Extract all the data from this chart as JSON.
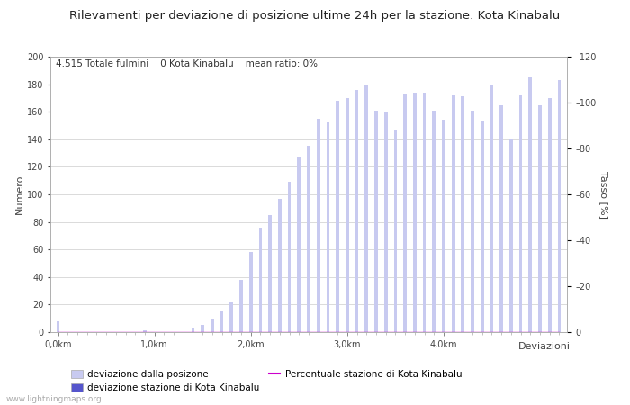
{
  "title": "Rilevamenti per deviazione di posizione ultime 24h per la stazione: Kota Kinabalu",
  "subtitle": "4.515 Totale fulmini    0 Kota Kinabalu    mean ratio: 0%",
  "xlabel": "Deviazioni",
  "ylabel_left": "Numero",
  "ylabel_right": "Tasso [%]",
  "ylim_left": [
    0,
    200
  ],
  "ylim_right": [
    0,
    120
  ],
  "yticks_left": [
    0,
    20,
    40,
    60,
    80,
    100,
    120,
    140,
    160,
    180,
    200
  ],
  "yticks_right": [
    0,
    20,
    40,
    60,
    80,
    100,
    120
  ],
  "bar_values": [
    8,
    0,
    0,
    0,
    0,
    0,
    0,
    0,
    0,
    1,
    0,
    0,
    0,
    0,
    3,
    5,
    10,
    16,
    22,
    38,
    58,
    76,
    85,
    97,
    109,
    127,
    135,
    155,
    152,
    168,
    170,
    176,
    180,
    161,
    160,
    147,
    173,
    174,
    174,
    161,
    154,
    172,
    171,
    161,
    153,
    180,
    165,
    140,
    172,
    185,
    165,
    170,
    183
  ],
  "station_values": [
    0,
    0,
    0,
    0,
    0,
    0,
    0,
    0,
    0,
    0,
    0,
    0,
    0,
    0,
    0,
    0,
    0,
    0,
    0,
    0,
    0,
    0,
    0,
    0,
    0,
    0,
    0,
    0,
    0,
    0,
    0,
    0,
    0,
    0,
    0,
    0,
    0,
    0,
    0,
    0,
    0,
    0,
    0,
    0,
    0,
    0,
    0,
    0,
    0,
    0,
    0,
    0,
    0
  ],
  "percentage_values": [
    0,
    0,
    0,
    0,
    0,
    0,
    0,
    0,
    0,
    0,
    0,
    0,
    0,
    0,
    0,
    0,
    0,
    0,
    0,
    0,
    0,
    0,
    0,
    0,
    0,
    0,
    0,
    0,
    0,
    0,
    0,
    0,
    0,
    0,
    0,
    0,
    0,
    0,
    0,
    0,
    0,
    0,
    0,
    0,
    0,
    0,
    0,
    0,
    0,
    0,
    0,
    0,
    0
  ],
  "bar_color_light": "#c8caf0",
  "bar_color_dark": "#5555cc",
  "line_color": "#cc00cc",
  "grid_color": "#cccccc",
  "background_color": "#ffffff",
  "watermark": "www.lightningmaps.org",
  "legend_label_light": "deviazione dalla posizone",
  "legend_label_dark": "deviazione stazione di Kota Kinabalu",
  "legend_label_line": "Percentuale stazione di Kota Kinabalu",
  "n_bars": 53,
  "step_km": 0.1,
  "right_ytick_labels": [
    "0",
    "-20",
    "-40",
    "-60",
    "-80",
    "-100",
    "-120"
  ]
}
